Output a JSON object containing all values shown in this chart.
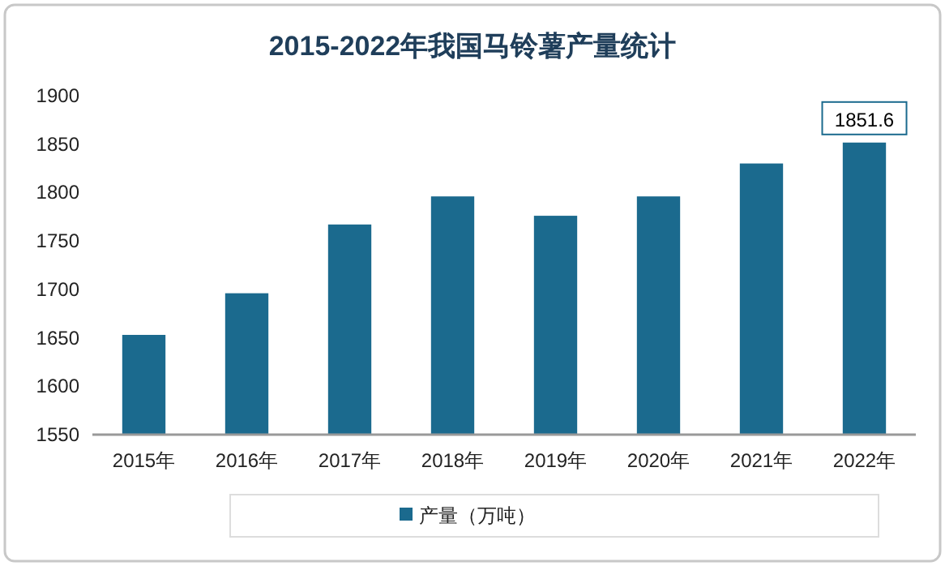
{
  "chart_data": {
    "type": "bar",
    "title": "2015-2022年我国马铃薯产量统计",
    "categories": [
      "2015年",
      "2016年",
      "2017年",
      "2018年",
      "2019年",
      "2020年",
      "2021年",
      "2022年"
    ],
    "series": [
      {
        "name": "产量（万吨）",
        "color": "#1b6a8e",
        "values": [
          1653,
          1696,
          1767,
          1796,
          1776,
          1796,
          1830,
          1851.6
        ],
        "value_labels": [
          null,
          null,
          null,
          null,
          null,
          null,
          null,
          "1851.6"
        ]
      }
    ],
    "ylim": [
      1550,
      1900
    ],
    "yticks": [
      1550,
      1600,
      1650,
      1700,
      1750,
      1800,
      1850,
      1900
    ],
    "grid": false,
    "legend": "bottom"
  }
}
